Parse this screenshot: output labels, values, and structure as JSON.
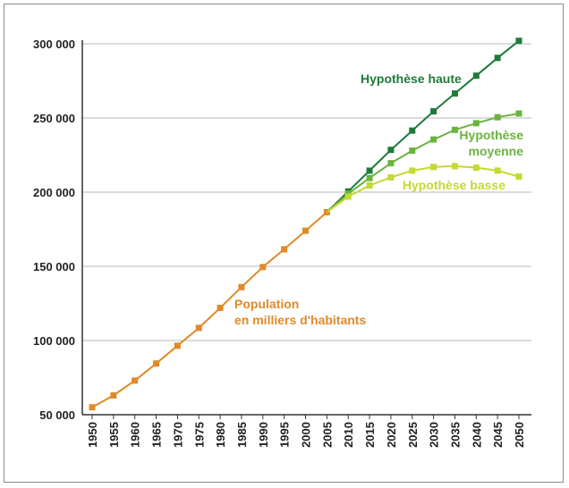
{
  "chart_data": {
    "type": "line",
    "title": "",
    "xlabel": "",
    "ylabel": "",
    "x": [
      1950,
      1955,
      1960,
      1965,
      1970,
      1975,
      1980,
      1985,
      1990,
      1995,
      2000,
      2005,
      2010,
      2015,
      2020,
      2025,
      2030,
      2035,
      2040,
      2045,
      2050
    ],
    "ylim": [
      50000,
      300000
    ],
    "yticks": [
      50000,
      100000,
      150000,
      200000,
      250000,
      300000
    ],
    "ytick_labels": [
      "50 000",
      "100 000",
      "150 000",
      "200 000",
      "250 000",
      "300 000"
    ],
    "grid": "horizontal",
    "series": [
      {
        "name": "Population",
        "color": "#e08a28",
        "x": [
          1950,
          1955,
          1960,
          1965,
          1970,
          1975,
          1980,
          1985,
          1990,
          1995,
          2000,
          2005
        ],
        "values": [
          55000,
          63000,
          73000,
          84500,
          96500,
          108500,
          122000,
          136000,
          149500,
          161500,
          174000,
          186500
        ]
      },
      {
        "name": "Hypothèse haute",
        "color": "#1f7a3a",
        "x": [
          2005,
          2010,
          2015,
          2020,
          2025,
          2030,
          2035,
          2040,
          2045,
          2050
        ],
        "values": [
          186500,
          200500,
          214500,
          228500,
          241500,
          254500,
          266500,
          278500,
          290500,
          302000
        ]
      },
      {
        "name": "Hypothèse moyenne",
        "color": "#6cb33f",
        "x": [
          2005,
          2010,
          2015,
          2020,
          2025,
          2030,
          2035,
          2040,
          2045,
          2050
        ],
        "values": [
          186500,
          199000,
          209500,
          219500,
          228000,
          235500,
          242000,
          246500,
          250500,
          253000
        ]
      },
      {
        "name": "Hypothèse basse",
        "color": "#c5d930",
        "x": [
          2005,
          2010,
          2015,
          2020,
          2025,
          2030,
          2035,
          2040,
          2045,
          2050
        ],
        "values": [
          186500,
          197000,
          204500,
          210000,
          214500,
          217000,
          217500,
          216500,
          214500,
          210500
        ]
      }
    ],
    "annotations": [
      {
        "id": "hyp-haute",
        "lines": [
          "Hypothèse haute"
        ],
        "color": "#1f7a3a"
      },
      {
        "id": "hyp-moyenne",
        "lines": [
          "Hypothèse",
          "moyenne"
        ],
        "color": "#6cb33f"
      },
      {
        "id": "hyp-basse",
        "lines": [
          "Hypothèse basse"
        ],
        "color": "#c5d930"
      },
      {
        "id": "population",
        "lines": [
          "Population",
          "en milliers d'habitants"
        ],
        "color": "#e08a28"
      }
    ]
  }
}
